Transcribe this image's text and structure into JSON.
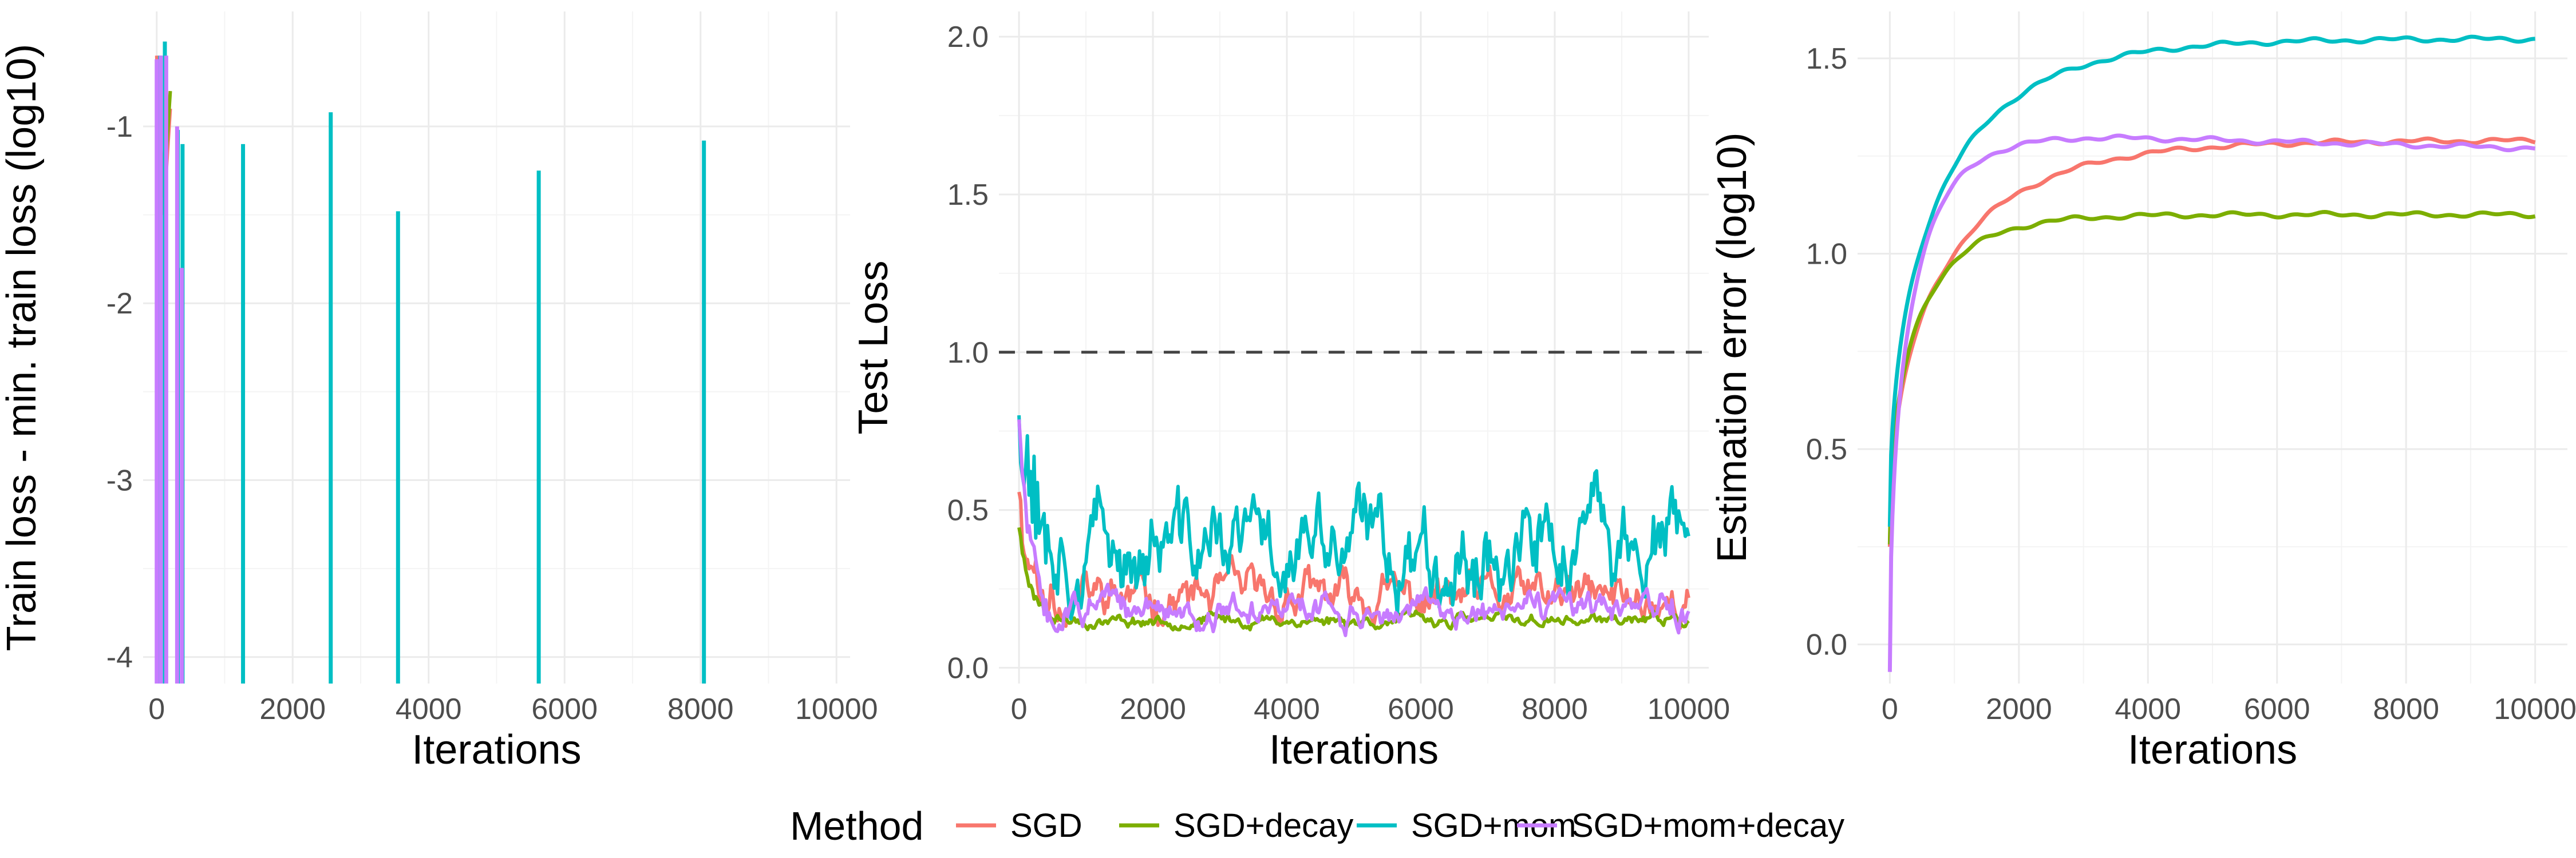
{
  "legend": {
    "title": "Method",
    "entries": [
      {
        "label": "SGD",
        "color": "#F8766D"
      },
      {
        "label": "SGD+decay",
        "color": "#7CAE00"
      },
      {
        "label": "SGD+mom",
        "color": "#00BFC4"
      },
      {
        "label": "SGD+mom+decay",
        "color": "#C77CFF"
      }
    ],
    "position": "bottom"
  },
  "chart_data": [
    {
      "type": "line",
      "xlabel": "Iterations",
      "ylabel": "Train loss - min. train loss (log10)",
      "xlim": [
        -200,
        10200
      ],
      "ylim": [
        -4.15,
        -0.35
      ],
      "xticks": [
        0,
        2000,
        4000,
        6000,
        8000,
        10000
      ],
      "yticks": [
        -4,
        -3,
        -2,
        -1
      ],
      "grid": true,
      "series": [
        {
          "name": "SGD",
          "color": "#F8766D",
          "x": [
            0,
            100,
            200
          ],
          "y": [
            -0.6,
            -1.5,
            -0.9
          ]
        },
        {
          "name": "SGD+decay",
          "color": "#7CAE00",
          "x": [
            0,
            100,
            200
          ],
          "y": [
            -0.7,
            -1.4,
            -0.8
          ]
        },
        {
          "name": "SGD+mom",
          "color": "#00BFC4",
          "spikes": [
            {
              "x": 50,
              "top": -0.6
            },
            {
              "x": 120,
              "top": -0.52
            },
            {
              "x": 310,
              "top": -1.02
            },
            {
              "x": 380,
              "top": -1.1
            },
            {
              "x": 1270,
              "top": -1.1
            },
            {
              "x": 2560,
              "top": -0.92
            },
            {
              "x": 3550,
              "top": -1.48
            },
            {
              "x": 5620,
              "top": -1.25
            },
            {
              "x": 8050,
              "top": -1.08
            }
          ]
        },
        {
          "name": "SGD+mom+decay",
          "color": "#C77CFF",
          "spikes": [
            {
              "x": 0,
              "top": -0.62
            },
            {
              "x": 60,
              "top": -0.6
            },
            {
              "x": 140,
              "top": -0.6
            },
            {
              "x": 300,
              "top": -1.0
            },
            {
              "x": 370,
              "top": -1.8
            }
          ]
        }
      ]
    },
    {
      "type": "line",
      "xlabel": "Iterations",
      "ylabel": "Test Loss",
      "xlim": [
        -300,
        10300
      ],
      "ylim": [
        -0.05,
        2.08
      ],
      "xticks": [
        0,
        2000,
        4000,
        6000,
        8000,
        10000
      ],
      "yticks": [
        0.0,
        0.5,
        1.0,
        1.5,
        2.0
      ],
      "ytick_labels": [
        "0.0",
        "0.5",
        "1.0",
        "1.5",
        "2.0"
      ],
      "grid": true,
      "hline": {
        "y": 1.0,
        "style": "dashed",
        "color": "#444444"
      },
      "series": [
        {
          "name": "SGD",
          "color": "#F8766D",
          "start": 0.6,
          "level": 0.22,
          "amp": 0.045,
          "seed": 11
        },
        {
          "name": "SGD+decay",
          "color": "#7CAE00",
          "start": 0.45,
          "level": 0.15,
          "amp": 0.012,
          "seed": 23
        },
        {
          "name": "SGD+mom",
          "color": "#00BFC4",
          "start": 0.9,
          "level": 0.38,
          "amp": 0.09,
          "seed": 37
        },
        {
          "name": "SGD+mom+decay",
          "color": "#C77CFF",
          "start": 0.78,
          "level": 0.18,
          "amp": 0.03,
          "seed": 51
        }
      ]
    },
    {
      "type": "line",
      "xlabel": "Iterations",
      "ylabel": "Estimation error (log10)",
      "xlim": [
        -500,
        10500
      ],
      "ylim": [
        -0.1,
        1.62
      ],
      "xticks": [
        0,
        2000,
        4000,
        6000,
        8000,
        10000
      ],
      "yticks": [
        0.0,
        0.5,
        1.0,
        1.5
      ],
      "ytick_labels": [
        "0.0",
        "0.5",
        "1.0",
        "1.5"
      ],
      "grid": true,
      "series": [
        {
          "name": "SGD",
          "color": "#F8766D",
          "final": 1.29,
          "rate": 1500,
          "start": 0.25
        },
        {
          "name": "SGD+decay",
          "color": "#7CAE00",
          "final": 1.1,
          "rate": 800,
          "start": 0.25
        },
        {
          "name": "SGD+mom",
          "color": "#00BFC4",
          "final": 1.55,
          "rate": 1400,
          "start": 0.3
        },
        {
          "name": "SGD+mom+decay",
          "color": "#C77CFF",
          "final": 1.27,
          "peak": 1.3,
          "rate": 600,
          "start": -0.07
        }
      ]
    }
  ]
}
